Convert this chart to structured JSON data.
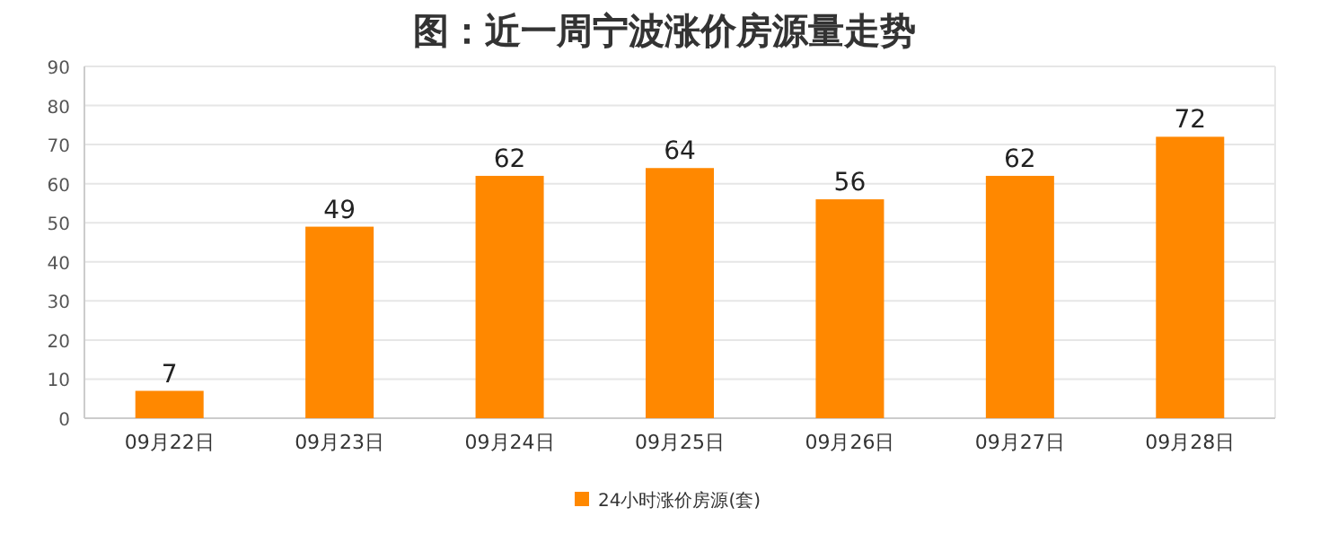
{
  "chart_data": {
    "type": "bar",
    "title": "图：近一周宁波涨价房源量走势",
    "categories": [
      "09月22日",
      "09月23日",
      "09月24日",
      "09月25日",
      "09月26日",
      "09月27日",
      "09月28日"
    ],
    "series": [
      {
        "name": "24小时涨价房源(套)",
        "color": "#ff8800",
        "values": [
          7,
          49,
          62,
          64,
          56,
          62,
          72
        ]
      }
    ],
    "ylim": [
      0,
      90
    ],
    "yticks": [
      0,
      10,
      20,
      30,
      40,
      50,
      60,
      70,
      80,
      90
    ],
    "grid": "y",
    "legend": "bottom",
    "data_labels": true
  }
}
